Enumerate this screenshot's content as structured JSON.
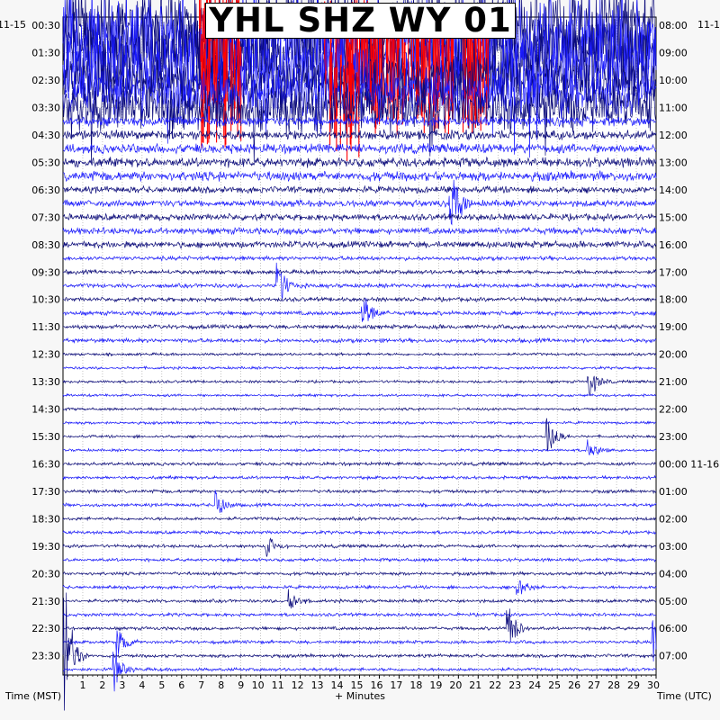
{
  "chart_data": {
    "type": "helicorder",
    "title": "YHL SHZ WY 01",
    "xlabel": "+ Minutes",
    "left_axis_label": "Time (MST)",
    "right_axis_label": "Time (UTC)",
    "left_date": "11-15",
    "right_date_top": "11-1",
    "right_date_mid": "11-16",
    "xlim": [
      0,
      30
    ],
    "x_ticks": [
      "1",
      "2",
      "3",
      "4",
      "5",
      "6",
      "7",
      "8",
      "9",
      "10",
      "11",
      "12",
      "13",
      "14",
      "15",
      "16",
      "17",
      "18",
      "19",
      "20",
      "21",
      "22",
      "23",
      "24",
      "25",
      "26",
      "27",
      "28",
      "29",
      "30"
    ],
    "left_ticks": [
      "00:30",
      "01:30",
      "02:30",
      "03:30",
      "04:30",
      "05:30",
      "06:30",
      "07:30",
      "08:30",
      "09:30",
      "10:30",
      "11:30",
      "12:30",
      "13:30",
      "14:30",
      "15:30",
      "16:30",
      "17:30",
      "18:30",
      "19:30",
      "20:30",
      "21:30",
      "22:30",
      "23:30"
    ],
    "right_ticks": [
      "08:00",
      "09:00",
      "10:00",
      "11:00",
      "12:00",
      "13:00",
      "14:00",
      "15:00",
      "16:00",
      "17:00",
      "18:00",
      "19:00",
      "20:00",
      "21:00",
      "22:00",
      "23:00",
      "00:00 11-16",
      "01:00",
      "02:00",
      "03:00",
      "04:00",
      "05:00",
      "06:00",
      "07:00"
    ],
    "trace_count": 48,
    "minutes_per_line": 30,
    "trace_colors": [
      "#0a0a7a",
      "#1a1aff"
    ],
    "clip_color": "#ff0000",
    "grid": true,
    "gridline_style": "dotted",
    "high_amplitude_lines": [
      0,
      1,
      2,
      3,
      4,
      5,
      6
    ],
    "clipped_windows": [
      {
        "line": 1,
        "start_min": 6.9,
        "end_min": 9.0
      },
      {
        "line": 2,
        "start_min": 13.2,
        "end_min": 15.5
      },
      {
        "line": 3,
        "start_min": 15.5,
        "end_min": 21.5
      },
      {
        "line": 4,
        "start_min": 7.0,
        "end_min": 9.0
      },
      {
        "line": 5,
        "start_min": 13.5,
        "end_min": 15.0
      }
    ],
    "events": [
      {
        "line": 13,
        "minute": 19.6,
        "amplitude": 2.2
      },
      {
        "line": 19,
        "minute": 10.9,
        "amplitude": 1.3
      },
      {
        "line": 21,
        "minute": 15.2,
        "amplitude": 1.1
      },
      {
        "line": 26,
        "minute": 26.6,
        "amplitude": 1.0
      },
      {
        "line": 30,
        "minute": 24.5,
        "amplitude": 1.2
      },
      {
        "line": 31,
        "minute": 26.5,
        "amplitude": 0.8
      },
      {
        "line": 35,
        "minute": 7.8,
        "amplitude": 0.8
      },
      {
        "line": 38,
        "minute": 10.3,
        "amplitude": 0.6
      },
      {
        "line": 41,
        "minute": 23.0,
        "amplitude": 0.6
      },
      {
        "line": 42,
        "minute": 11.5,
        "amplitude": 0.7
      },
      {
        "line": 44,
        "minute": 22.5,
        "amplitude": 1.5
      },
      {
        "line": 45,
        "minute": 2.8,
        "amplitude": 0.9
      },
      {
        "line": 45,
        "minute": 29.9,
        "amplitude": 1.6
      },
      {
        "line": 46,
        "minute": 0.1,
        "amplitude": 3.5
      },
      {
        "line": 47,
        "minute": 2.6,
        "amplitude": 0.9
      }
    ]
  }
}
